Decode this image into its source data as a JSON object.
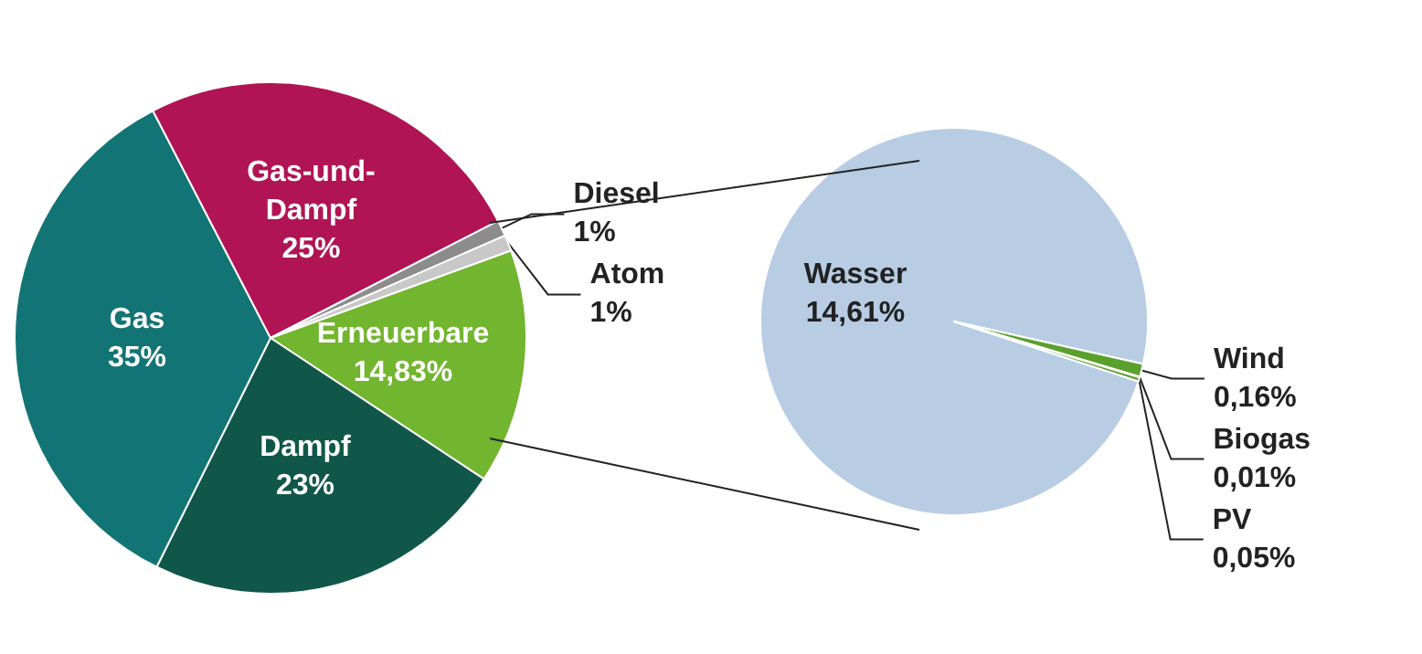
{
  "chart_data": [
    {
      "type": "pie",
      "categories": [
        "Erneuerbare",
        "Dampf",
        "Gas",
        "Gas-und-Dampf",
        "Diesel",
        "Atom"
      ],
      "values": [
        14.83,
        23,
        35,
        25,
        1,
        1
      ],
      "colors": [
        "#72b52e",
        "#10574a",
        "#127474",
        "#b01454",
        "#8c8c8c",
        "#c8c8c8"
      ],
      "value_labels": [
        "14,83%",
        "23%",
        "35%",
        "25%",
        "1%",
        "1%"
      ]
    },
    {
      "type": "pie",
      "categories": [
        "Wasser",
        "Wind",
        "Biogas",
        "PV"
      ],
      "values": [
        14.61,
        0.16,
        0.01,
        0.05
      ],
      "colors": [
        "#b8cde4",
        "#5aa02c",
        "#5aa02c",
        "#5aa02c"
      ],
      "value_labels": [
        "14,61%",
        "0,16%",
        "0,01%",
        "0,05%"
      ]
    }
  ]
}
